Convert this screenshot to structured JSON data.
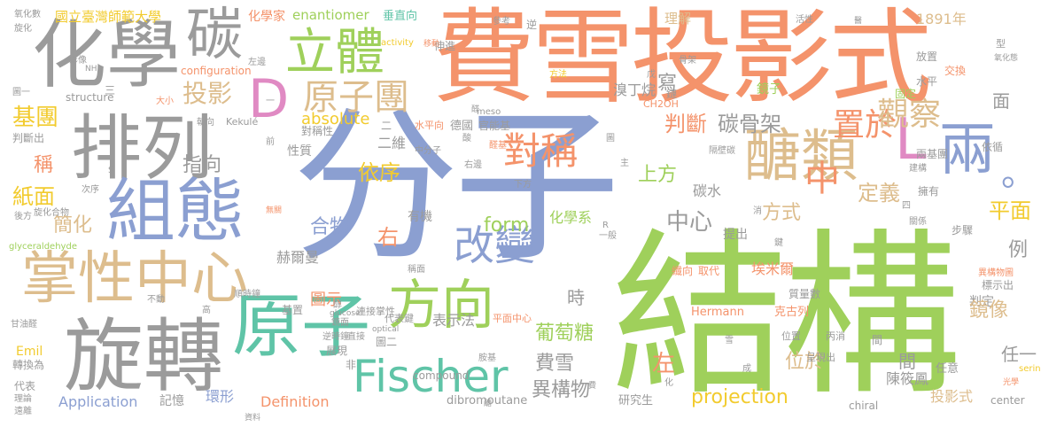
{
  "palette": {
    "orange": "#f4936b",
    "green": "#9fd05b",
    "blue": "#8b9fd1",
    "pink": "#e08ac3",
    "gray": "#9b9b9b",
    "tan": "#ddbd8d",
    "teal": "#5fc4a7",
    "yellow": "#f2cb2e"
  },
  "words": [
    "費雪投影式",
    "分子",
    "結構",
    "化學",
    "排列",
    "碳",
    "組態",
    "旋轉",
    "掌性中心",
    "立體",
    "原子團",
    "D",
    "醣類",
    "L",
    "兩",
    "中",
    "。",
    "對稱",
    "原子",
    "方向",
    "改變",
    "置於",
    "觀察",
    "碳骨架",
    "判斷",
    "Fischer",
    "投影",
    "指向",
    "依序",
    "上方",
    "定義",
    "平面",
    "中心",
    "方式",
    "form",
    "化學系",
    "合物",
    "右",
    "簡化",
    "紙面",
    "基團",
    "稱",
    "寫",
    "葡萄糖",
    "費雪",
    "位於",
    "異構物",
    "左",
    "projection",
    "Application",
    "Definition",
    "赫爾曼",
    "圖示",
    "時",
    "表示法",
    "有機",
    "absolute",
    "二維",
    "性質",
    "國立臺灣師範大學",
    "化學家",
    "enantiomer",
    "垂直向",
    "理解",
    "1891年",
    "活性",
    "骨架",
    "鏡子",
    "固定",
    "兩基團",
    "依循",
    "擁有",
    "步驟",
    "異構物圖",
    "標示出",
    "判定",
    "任意",
    "研究生",
    "陳筱鳳",
    "chiral",
    "center",
    "Hermann",
    "克古列",
    "埃米爾",
    "纖向",
    "取代",
    "質量數",
    "位置",
    "丙消",
    "呈現出",
    "圖二",
    "碳水",
    "例",
    "任一",
    "間",
    "鏡像",
    "投影式",
    "提出",
    "德國",
    "官能基",
    "meso",
    "對稱性",
    "Kekulé",
    "中分子",
    "右邊",
    "下方",
    "關係",
    "鍵",
    "四",
    "消",
    "隔壁碳",
    "CH2OH",
    "圖",
    "戊",
    "水平向",
    "伸進",
    "溴丁烷",
    "方法",
    "水平",
    "交換",
    "放置",
    "型",
    "氧化態",
    "醛",
    "NH",
    "structure",
    "configuration",
    "影像",
    "旋化",
    "氧化數",
    "大小",
    "朝向",
    "判斷出",
    "次序",
    "後方",
    "旋化合物",
    "glyceraldehyde",
    "甘油醛",
    "不動",
    "高",
    "順時鐘",
    "逆時鐘",
    "基置",
    "直接",
    "鏡面",
    "Emil",
    "展現",
    "轉換為",
    "代表",
    "理論",
    "遠離",
    "資料",
    "非",
    "環形",
    "記憶",
    "dibromoutane",
    "compound",
    "optical",
    "glucose",
    "胺基",
    "代表鍵",
    "平面中心",
    "連接掌性",
    "一般",
    "R",
    "無關",
    "稱面",
    "S",
    "三",
    "參考",
    "移動",
    "activity",
    "左邊",
    "逆",
    "面",
    "一",
    "前",
    "酸",
    "醛基",
    "圖一",
    "建構",
    "費",
    "鏈",
    "二",
    "化",
    "雪",
    "主",
    "醇",
    "醣",
    "serine",
    "光學",
    "醫",
    "間",
    "成"
  ]
}
